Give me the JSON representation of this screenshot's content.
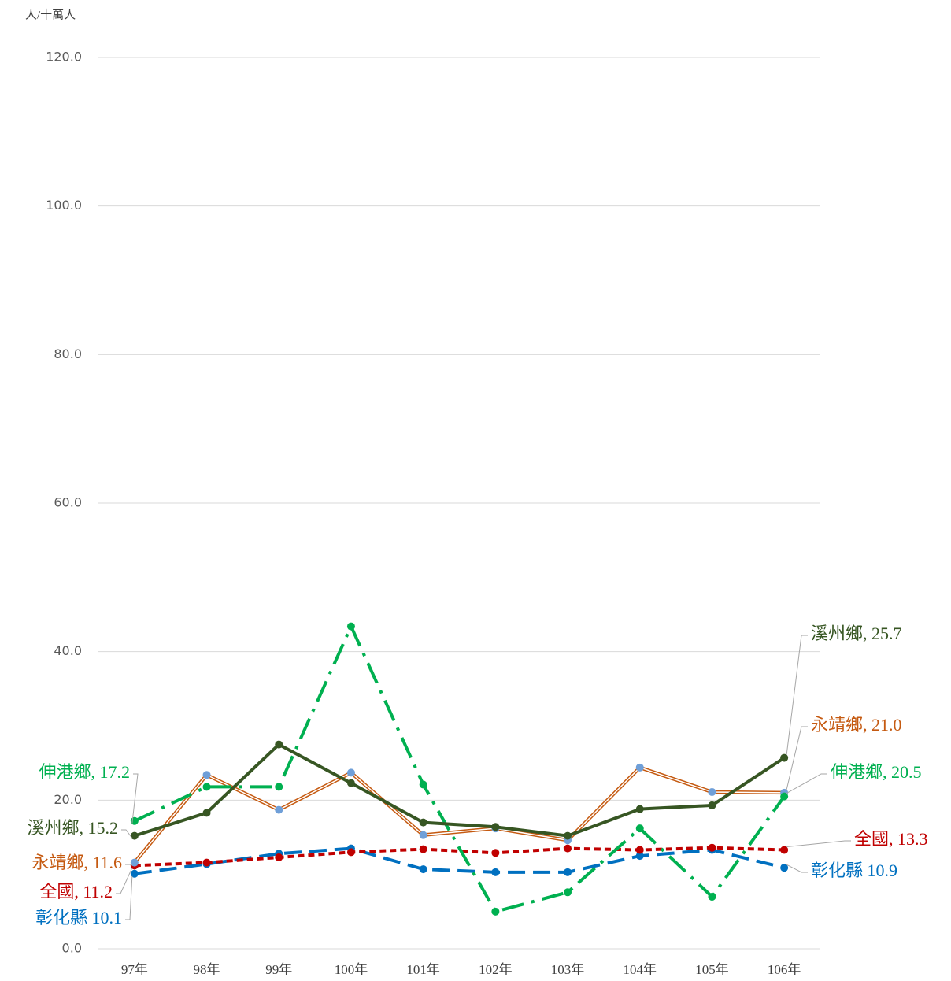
{
  "chart_data": {
    "type": "line",
    "y_axis_label": "人/十萬人",
    "categories": [
      "97年",
      "98年",
      "99年",
      "100年",
      "101年",
      "102年",
      "103年",
      "104年",
      "105年",
      "106年"
    ],
    "ylim": [
      0,
      120
    ],
    "yticks": [
      {
        "value": 0,
        "label": "0.0"
      },
      {
        "value": 20,
        "label": "20.0"
      },
      {
        "value": 40,
        "label": "40.0"
      },
      {
        "value": 60,
        "label": "60.0"
      },
      {
        "value": 80,
        "label": "80.0"
      },
      {
        "value": 100,
        "label": "100.0"
      },
      {
        "value": 120,
        "label": "120.0"
      }
    ],
    "grid": true,
    "series": [
      {
        "name": "彰化縣",
        "color": "#0070c0",
        "marker_color": "#0070c0",
        "dash": "22 10",
        "values": [
          10.1,
          11.4,
          12.8,
          13.5,
          10.7,
          10.3,
          10.3,
          12.5,
          13.3,
          10.9
        ],
        "value_labels": [
          "彰化縣 10.1",
          null,
          null,
          null,
          null,
          null,
          null,
          null,
          null,
          "彰化縣 10.9"
        ]
      },
      {
        "name": "全國",
        "color": "#c00000",
        "marker_color": "#c00000",
        "dash": "8 5",
        "values": [
          11.2,
          11.6,
          12.3,
          13.0,
          13.4,
          12.9,
          13.5,
          13.3,
          13.6,
          13.3
        ],
        "value_labels": [
          "全國, 11.2",
          null,
          null,
          null,
          null,
          null,
          null,
          null,
          null,
          "全國, 13.3"
        ]
      },
      {
        "name": "永靖鄉",
        "color": "#c55a11",
        "marker_color": "#6f9fd8",
        "dash": "double",
        "values": [
          11.6,
          23.4,
          18.7,
          23.7,
          15.3,
          16.2,
          14.6,
          24.4,
          21.1,
          21.0
        ],
        "value_labels": [
          "永靖鄉, 11.6",
          null,
          null,
          null,
          null,
          null,
          null,
          null,
          null,
          "永靖鄉, 21.0"
        ]
      },
      {
        "name": "伸港鄉",
        "color": "#00b050",
        "marker_color": "#00b050",
        "dash": "28 10 4 10",
        "values": [
          17.2,
          21.8,
          21.8,
          43.4,
          22.1,
          5.0,
          7.6,
          16.2,
          7.0,
          20.5
        ],
        "value_labels": [
          "伸港鄉, 17.2",
          null,
          null,
          null,
          null,
          null,
          null,
          null,
          null,
          "伸港鄉, 20.5"
        ]
      },
      {
        "name": "溪州鄉",
        "color": "#375623",
        "marker_color": "#375623",
        "dash": "solid",
        "values": [
          15.2,
          18.3,
          27.5,
          22.3,
          17.0,
          16.4,
          15.2,
          18.8,
          19.3,
          25.7
        ],
        "value_labels": [
          "溪州鄉, 15.2",
          null,
          null,
          null,
          null,
          null,
          null,
          null,
          null,
          "溪州鄉, 25.7"
        ]
      }
    ]
  }
}
